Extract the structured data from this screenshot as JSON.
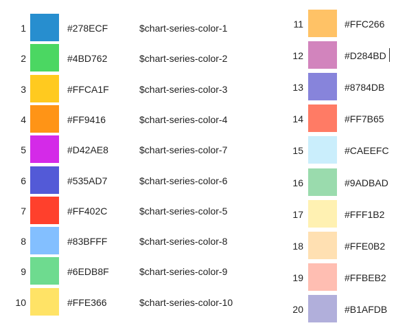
{
  "left_column": [
    {
      "index": "1",
      "hex": "#278ECF",
      "variable": "$chart-series-color-1",
      "color": "#278ECF"
    },
    {
      "index": "2",
      "hex": "#4BD762",
      "variable": "$chart-series-color-2",
      "color": "#4BD762"
    },
    {
      "index": "3",
      "hex": "#FFCA1F",
      "variable": "$chart-series-color-3",
      "color": "#FFCA1F"
    },
    {
      "index": "4",
      "hex": "#FF9416",
      "variable": "$chart-series-color-4",
      "color": "#FF9416"
    },
    {
      "index": "5",
      "hex": "#D42AE8",
      "variable": "$chart-series-color-7",
      "color": "#D42AE8"
    },
    {
      "index": "6",
      "hex": "#535AD7",
      "variable": "$chart-series-color-6",
      "color": "#535AD7"
    },
    {
      "index": "7",
      "hex": "#FF402C",
      "variable": "$chart-series-color-5",
      "color": "#FF402C"
    },
    {
      "index": "8",
      "hex": "#83BFFF",
      "variable": "$chart-series-color-8",
      "color": "#83BFFF"
    },
    {
      "index": "9",
      "hex": "#6EDB8F",
      "variable": "$chart-series-color-9",
      "color": "#6EDB8F"
    },
    {
      "index": "10",
      "hex": "#FFE366",
      "variable": "$chart-series-color-10",
      "color": "#FFE366"
    }
  ],
  "right_column": [
    {
      "index": "11",
      "hex": "#FFC266",
      "color": "#FFC266"
    },
    {
      "index": "12",
      "hex": "#D284BD",
      "color": "#D284BD"
    },
    {
      "index": "13",
      "hex": "#8784DB",
      "color": "#8784DB"
    },
    {
      "index": "14",
      "hex": "#FF7B65",
      "color": "#FF7B65"
    },
    {
      "index": "15",
      "hex": "#CAEEFC",
      "color": "#CAEEFC"
    },
    {
      "index": "16",
      "hex": "#9ADBAD",
      "color": "#9ADBAD"
    },
    {
      "index": "17",
      "hex": "#FFF1B2",
      "color": "#FFF1B2"
    },
    {
      "index": "18",
      "hex": "#FFE0B2",
      "color": "#FFE0B2"
    },
    {
      "index": "19",
      "hex": "#FFBEB2",
      "color": "#FFBEB2"
    },
    {
      "index": "20",
      "hex": "#B1AFDB",
      "color": "#B1AFDB"
    }
  ]
}
